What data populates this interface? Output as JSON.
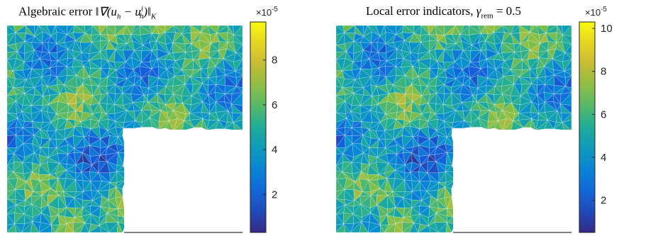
{
  "chart_data": [
    {
      "type": "heatmap",
      "title_text": "Algebraic error",
      "title_math": "‖∇(u",
      "title_math_sub": "h",
      "title_math_mid": " − u",
      "title_math_sup": "i",
      "title_math_sub2": "h",
      "title_math_end": ")‖",
      "title_math_sub3": "K",
      "colorbar": {
        "exponent_base": "×10",
        "exponent": "-5",
        "ticks": [
          2,
          4,
          6,
          8
        ],
        "range": [
          0.3,
          9.7
        ]
      },
      "colormap": "parula",
      "domain": "L-shaped"
    },
    {
      "type": "heatmap",
      "title_text": "Local error indicators, ",
      "title_math": "γ",
      "title_math_sub": "rem",
      "title_math_end": " = 0.5",
      "colorbar": {
        "exponent_base": "×10",
        "exponent": "-5",
        "ticks": [
          2,
          4,
          6,
          8,
          10
        ],
        "range": [
          0.5,
          10.3
        ]
      },
      "colormap": "parula",
      "domain": "L-shaped"
    }
  ]
}
